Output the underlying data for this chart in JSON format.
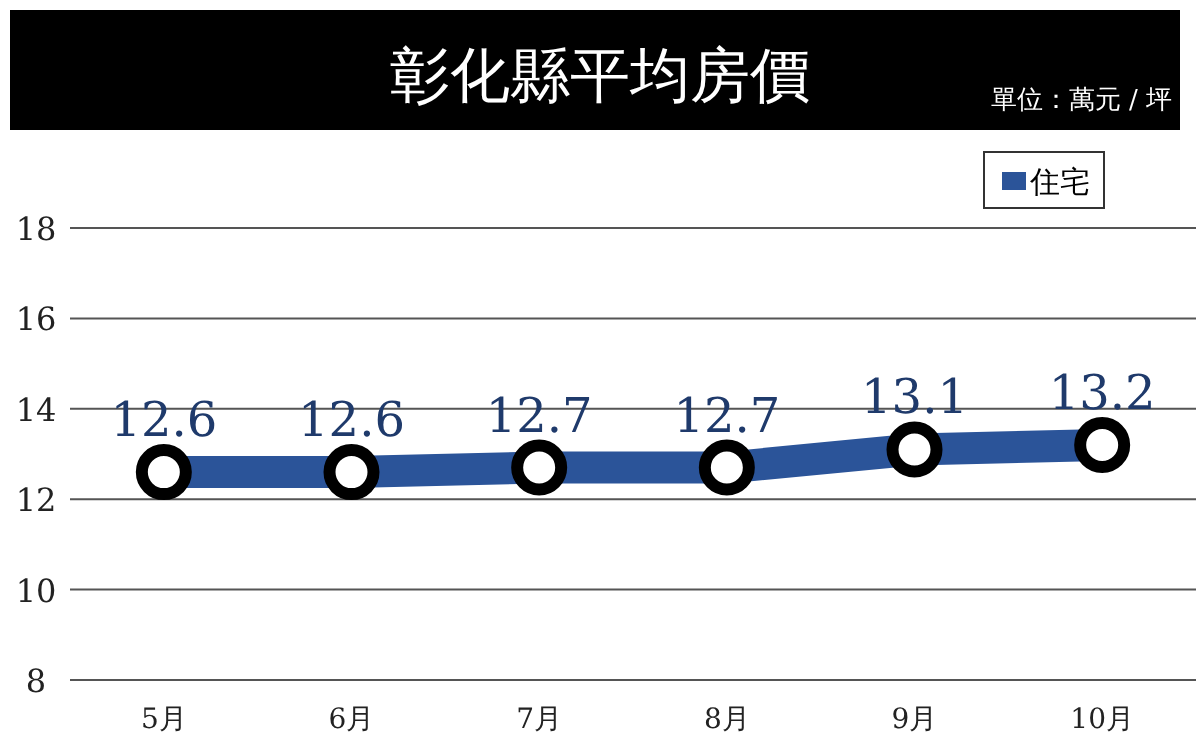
{
  "chart_data": {
    "type": "line",
    "title": "彰化縣平均房價",
    "subtitle": "單位：萬元 / 坪",
    "categories": [
      "5月",
      "6月",
      "7月",
      "8月",
      "9月",
      "10月"
    ],
    "series": [
      {
        "name": "住宅",
        "color": "#2b5499",
        "values": [
          12.6,
          12.6,
          12.7,
          12.7,
          13.1,
          13.2
        ]
      }
    ],
    "ylim": [
      8,
      18
    ],
    "yticks": [
      8,
      10,
      12,
      14,
      16,
      18
    ],
    "grid": "y",
    "legend": "top right",
    "marker": "circle",
    "data_labels": true
  }
}
